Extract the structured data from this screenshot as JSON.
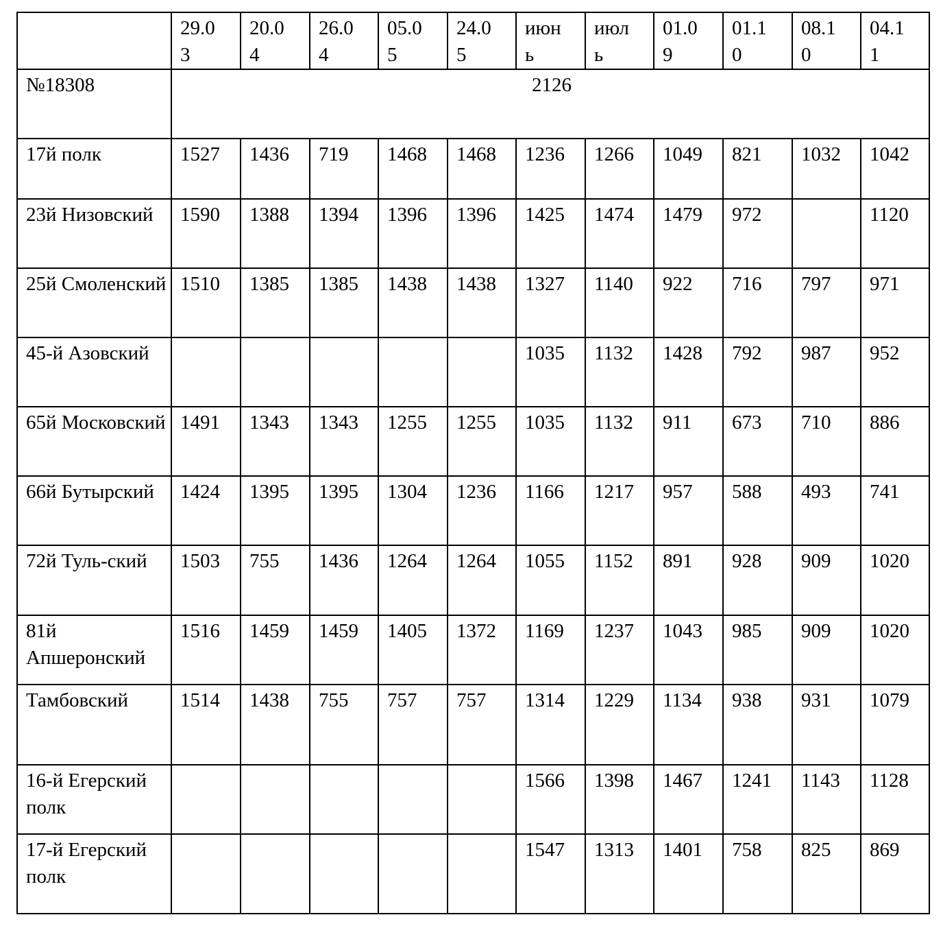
{
  "table": {
    "headers": [
      "",
      "29.03",
      "20.04",
      "26.04",
      "05.05",
      "24.05",
      "июнь",
      "июль",
      "01.09",
      "01.10",
      "08.10",
      "04.11"
    ],
    "summary_row": {
      "label": "№18308",
      "value": "2126"
    },
    "rows": [
      {
        "name": "17й полк",
        "values": [
          "1527",
          "1436",
          "719",
          "1468",
          "1468",
          "1236",
          "1266",
          "1049",
          "821",
          "1032",
          "1042"
        ]
      },
      {
        "name": "23й Низовский",
        "values": [
          "1590",
          "1388",
          "1394",
          "1396",
          "1396",
          "1425",
          "1474",
          "1479",
          "972",
          "",
          "1120"
        ]
      },
      {
        "name": "25й Смоленский",
        "values": [
          "1510",
          "1385",
          "1385",
          "1438",
          "1438",
          "1327",
          "1140",
          "922",
          "716",
          "797",
          "971"
        ]
      },
      {
        "name": "45-й Азовский",
        "values": [
          "",
          "",
          "",
          "",
          "",
          "1035",
          "1132",
          "1428",
          "792",
          "987",
          "952"
        ]
      },
      {
        "name": "65й Московский",
        "values": [
          "1491",
          "1343",
          "1343",
          "1255",
          "1255",
          "1035",
          "1132",
          "911",
          "673",
          "710",
          "886"
        ]
      },
      {
        "name": "66й Бутырский",
        "values": [
          "1424",
          "1395",
          "1395",
          "1304",
          "1236",
          "1166",
          "1217",
          "957",
          "588",
          "493",
          "741"
        ]
      },
      {
        "name": "72й Туль-ский",
        "values": [
          "1503",
          "755",
          "1436",
          "1264",
          "1264",
          "1055",
          "1152",
          "891",
          "928",
          "909",
          "1020"
        ]
      },
      {
        "name": "81й Апшеронский",
        "values": [
          "1516",
          "1459",
          "1459",
          "1405",
          "1372",
          "1169",
          "1237",
          "1043",
          "985",
          "909",
          "1020"
        ]
      },
      {
        "name": "Тамбовский",
        "values": [
          "1514",
          "1438",
          "755",
          "757",
          "757",
          "1314",
          "1229",
          "1134",
          "938",
          "931",
          "1079"
        ]
      },
      {
        "name": "16-й Егерский полк",
        "values": [
          "",
          "",
          "",
          "",
          "",
          "1566",
          "1398",
          "1467",
          "1241",
          "1143",
          "1128"
        ]
      },
      {
        "name": "17-й Егерский полк",
        "values": [
          "",
          "",
          "",
          "",
          "",
          "1547",
          "1313",
          "1401",
          "758",
          "825",
          "869"
        ]
      }
    ]
  }
}
